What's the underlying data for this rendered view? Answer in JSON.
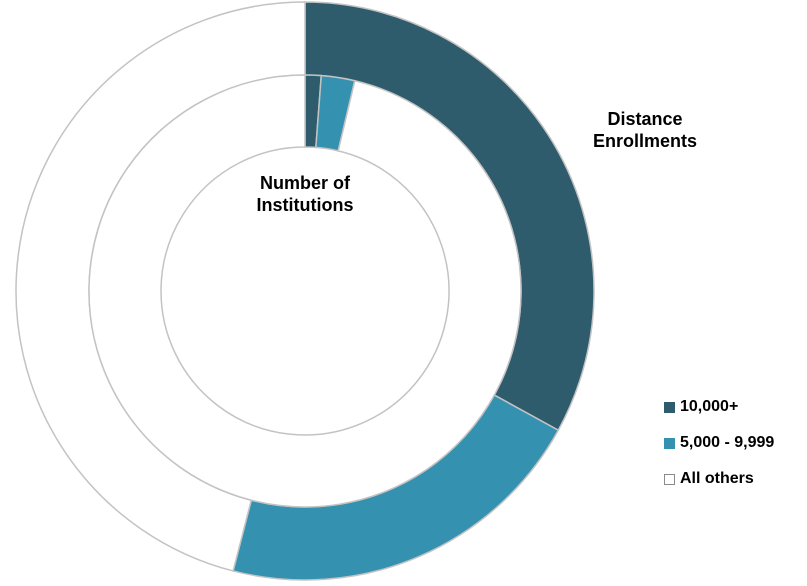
{
  "chart_data": {
    "type": "pie",
    "subtype": "donut",
    "categories": [
      "10,000+",
      "5,000 - 9,999",
      "All others"
    ],
    "colors": [
      "#2e5c6d",
      "#3591b0",
      "#ffffff"
    ],
    "legend": "right",
    "series": [
      {
        "name": "Distance Enrollments",
        "ring": "outer",
        "values": [
          33,
          21,
          46
        ]
      },
      {
        "name": "Number of Institutions",
        "ring": "inner",
        "values": [
          1.2,
          2.5,
          96.3
        ]
      }
    ],
    "labels": {
      "outer": "Distance Enrollments",
      "inner": "Number of Institutions"
    }
  }
}
